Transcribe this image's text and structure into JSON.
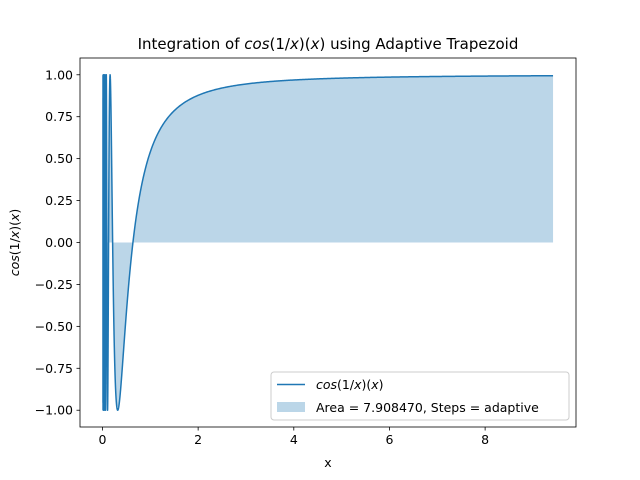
{
  "chart_data": {
    "type": "area",
    "title": {
      "prefix": "Integration of ",
      "math": "cos",
      "paren": "(1/",
      "math2": "x",
      "paren2": ")(",
      "math3": "x",
      "suffix": ") using Adaptive Trapezoid"
    },
    "xlabel": "x",
    "ylabel": {
      "math": "cos",
      "paren": "(1/",
      "math2": "x",
      "paren2": ")(",
      "math3": "x",
      "suffix": ")"
    },
    "xlim": [
      -0.47,
      9.9
    ],
    "ylim": [
      -1.1,
      1.1
    ],
    "xticks": [
      0,
      2,
      4,
      6,
      8
    ],
    "xtick_labels": [
      "0",
      "2",
      "4",
      "6",
      "8"
    ],
    "yticks": [
      -1.0,
      -0.75,
      -0.5,
      -0.25,
      0.0,
      0.25,
      0.5,
      0.75,
      1.0
    ],
    "ytick_labels": [
      "−1.00",
      "−0.75",
      "−0.50",
      "−0.25",
      "0.00",
      "0.25",
      "0.50",
      "0.75",
      "1.00"
    ],
    "grid": false,
    "legend_position": "lower-right",
    "function": "cos(1/x)",
    "x_range": [
      0.01,
      9.42
    ],
    "series": [
      {
        "name": {
          "math": "cos",
          "paren": "(1/",
          "math2": "x",
          "paren2": ")(",
          "math3": "x",
          "suffix": ")"
        },
        "kind": "line",
        "color": "#1f77b4"
      },
      {
        "name": "Area = 7.908470, Steps = adaptive",
        "kind": "fill",
        "color": "#1f77b4",
        "alpha": 0.3
      }
    ]
  }
}
